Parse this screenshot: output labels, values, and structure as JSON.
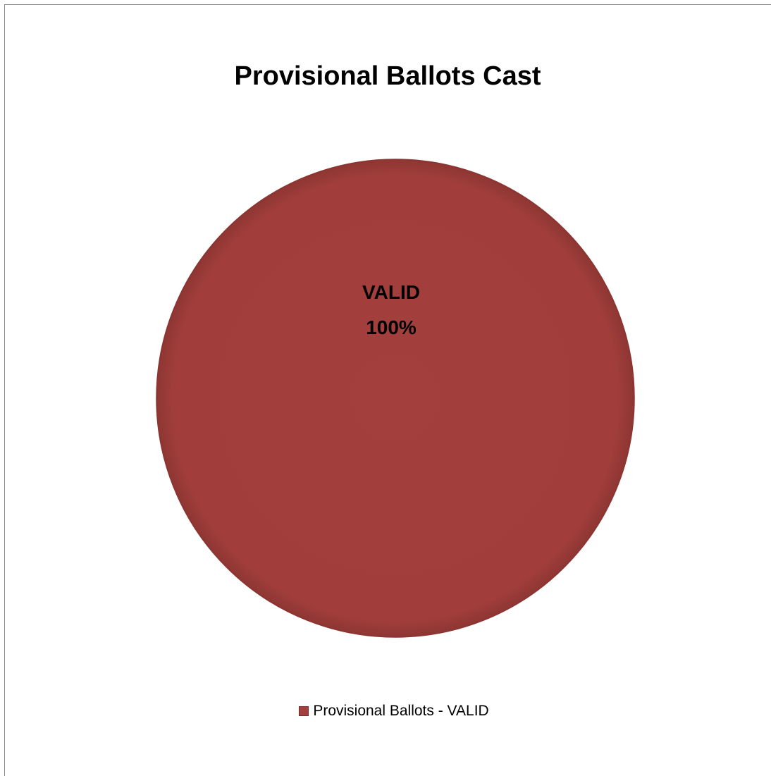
{
  "chart_data": {
    "type": "pie",
    "title": "Provisional Ballots Cast",
    "categories": [
      "VALID"
    ],
    "values": [
      100
    ],
    "data_labels": [
      {
        "category": "VALID",
        "percent": "100%"
      }
    ],
    "legend": {
      "position": "bottom",
      "entries": [
        "Provisional Ballots - VALID"
      ]
    },
    "colors": [
      "#a33f3c"
    ]
  }
}
